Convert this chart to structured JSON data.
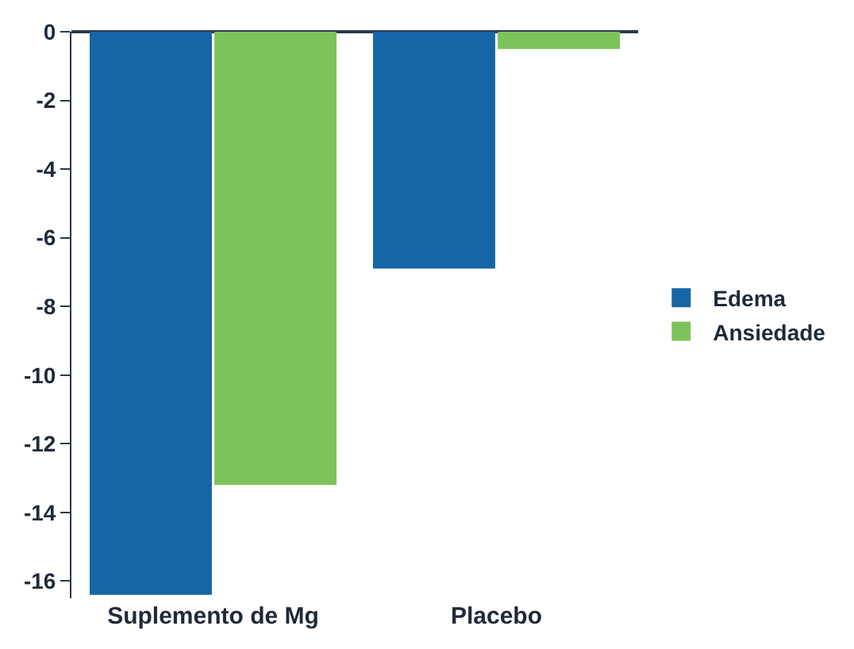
{
  "chart_data": {
    "type": "bar",
    "categories": [
      "Suplemento de Mg",
      "Placebo"
    ],
    "series": [
      {
        "name": "Edema",
        "color": "#1565a7",
        "values": [
          -16.4,
          -6.9
        ]
      },
      {
        "name": "Ansiedade",
        "color": "#7dc35b",
        "values": [
          -13.2,
          -0.5
        ]
      }
    ],
    "ylim": [
      -16.5,
      0
    ],
    "yticks": [
      0,
      -2,
      -4,
      -6,
      -8,
      -10,
      -12,
      -14,
      -16
    ],
    "legend": "right"
  }
}
